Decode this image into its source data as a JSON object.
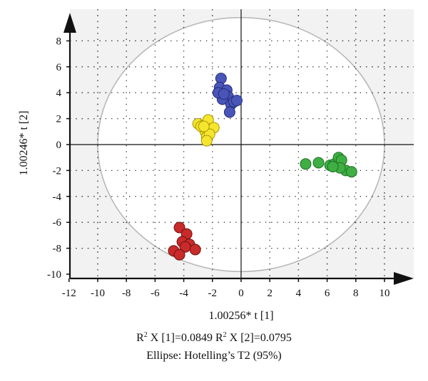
{
  "chart_data": {
    "type": "scatter",
    "title": "",
    "xlabel": "1.00256* t [1]",
    "ylabel": "1.00246* t [2]",
    "xlim": [
      -12,
      12
    ],
    "ylim": [
      -10,
      10
    ],
    "xticks": [
      -12,
      -10,
      -8,
      -6,
      -4,
      -2,
      0,
      2,
      4,
      6,
      8,
      10
    ],
    "yticks": [
      -10,
      -8,
      -6,
      -4,
      -2,
      0,
      2,
      4,
      6,
      8
    ],
    "grid": true,
    "ellipse": {
      "center": [
        0,
        0
      ],
      "rx": 10,
      "ry": 9.8
    },
    "series": [
      {
        "color": "#4a55b8",
        "stroke": "#252d7a",
        "x": [
          -1.4,
          -1.5,
          -1.0,
          -0.9,
          -1.3,
          -0.7,
          -0.5,
          -0.3,
          -1.6,
          -1.2,
          -0.8
        ],
        "y": [
          5.1,
          4.4,
          4.2,
          3.7,
          3.5,
          3.1,
          3.3,
          3.4,
          4.0,
          3.9,
          2.5
        ]
      },
      {
        "color": "#f5e52e",
        "stroke": "#a89600",
        "x": [
          -3.0,
          -2.6,
          -2.3,
          -2.5,
          -2.1,
          -1.9,
          -2.8,
          -2.4,
          -2.2,
          -2.4,
          -2.6
        ],
        "y": [
          1.6,
          1.5,
          1.9,
          1.0,
          1.2,
          1.3,
          1.4,
          0.6,
          0.8,
          0.3,
          1.4
        ]
      },
      {
        "color": "#3fae44",
        "stroke": "#1d6f22",
        "x": [
          4.5,
          5.4,
          6.2,
          6.5,
          6.8,
          7.0,
          7.3,
          7.7,
          6.9,
          6.4
        ],
        "y": [
          -1.5,
          -1.4,
          -1.6,
          -1.5,
          -1.0,
          -1.2,
          -2.0,
          -2.1,
          -1.8,
          -1.7
        ]
      },
      {
        "color": "#c92a2a",
        "stroke": "#6e1010",
        "x": [
          -4.3,
          -3.8,
          -4.1,
          -3.6,
          -3.9,
          -4.7,
          -4.3,
          -3.2
        ],
        "y": [
          -6.4,
          -6.9,
          -7.5,
          -7.7,
          -7.9,
          -8.2,
          -8.5,
          -8.1
        ]
      }
    ]
  },
  "caption": {
    "r2_prefix_1": "R",
    "r2_sup_1": "2",
    "r2_rest_1": " X [1]=0.0849 ",
    "r2_prefix_2": "R",
    "r2_sup_2": "2",
    "r2_rest_2": " X [2]=0.0795",
    "ellipse_label": "Ellipse: Hotelling’s T2 (95%)"
  }
}
